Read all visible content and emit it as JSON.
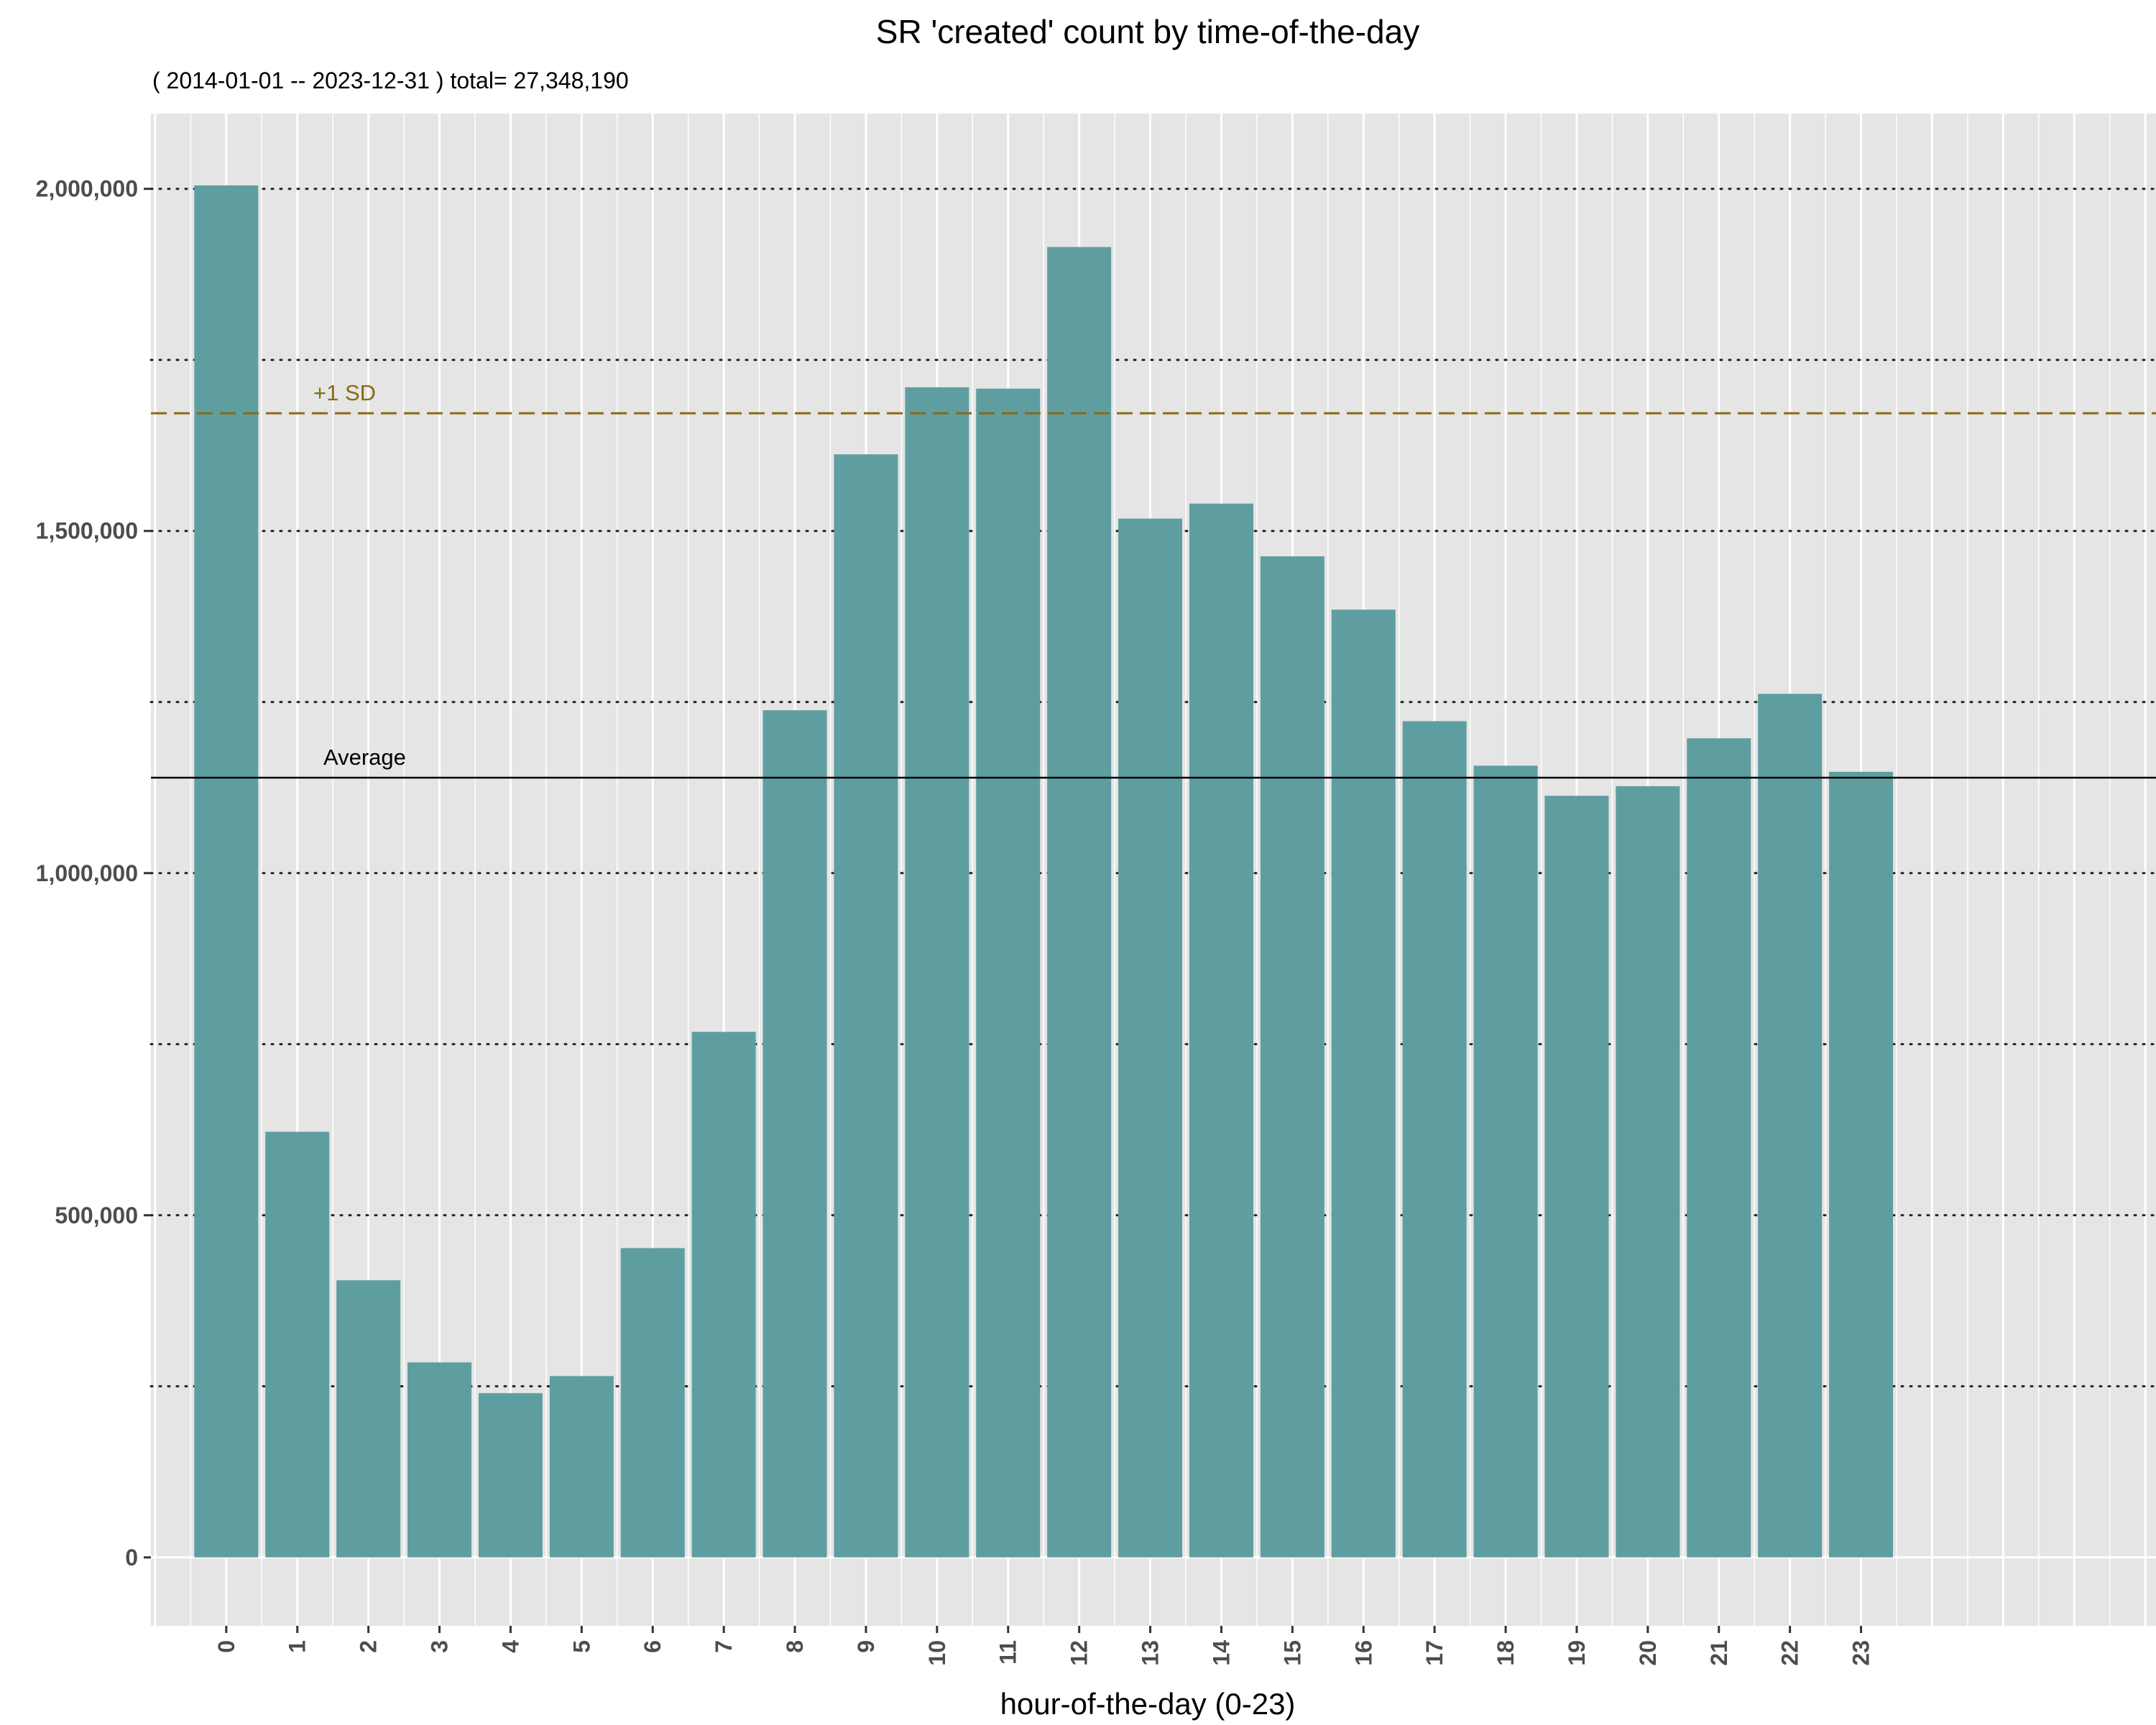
{
  "chart_data": {
    "type": "bar",
    "title": "SR 'created' count by time-of-the-day",
    "subtitle": "( 2014-01-01 -- 2023-12-31 ) total= 27,348,190",
    "xlabel": "hour-of-the-day (0-23)",
    "ylabel": "",
    "categories": [
      "0",
      "1",
      "2",
      "3",
      "4",
      "5",
      "6",
      "7",
      "8",
      "9",
      "10",
      "11",
      "12",
      "13",
      "14",
      "15",
      "16",
      "17",
      "18",
      "19",
      "20",
      "21",
      "22",
      "23"
    ],
    "values": [
      2005000,
      622000,
      405000,
      285000,
      240000,
      265000,
      452000,
      768000,
      1238000,
      1612000,
      1710000,
      1708000,
      1915000,
      1518000,
      1540000,
      1463000,
      1385000,
      1222000,
      1157000,
      1113000,
      1127000,
      1197000,
      1262000,
      1148000
    ],
    "ylim": [
      -100000,
      2110000
    ],
    "yticks": [
      0,
      500000,
      1000000,
      1500000,
      2000000
    ],
    "ytick_labels": [
      "0",
      "500,000",
      "1,000,000",
      "1,500,000",
      "2,000,000"
    ],
    "minor_gridlines": [
      250000,
      750000,
      1250000,
      1750000
    ],
    "grid": true,
    "bar_color": "#5f9ea0",
    "panel_color": "#e5e5e5",
    "reference_lines": [
      {
        "label": "Average",
        "value": 1139508,
        "style": "solid",
        "color": "#000000"
      },
      {
        "label": "+1 SD",
        "value": 1672000,
        "style": "dashed",
        "color": "#8b6914"
      }
    ]
  }
}
